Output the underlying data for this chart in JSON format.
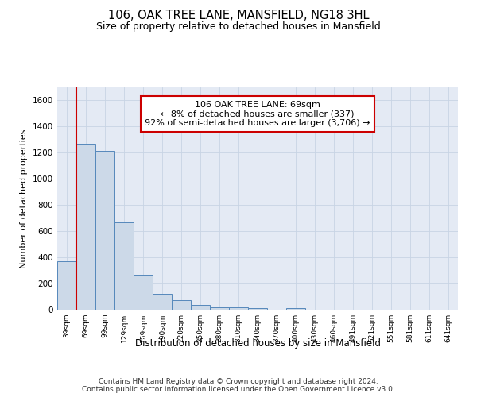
{
  "title": "106, OAK TREE LANE, MANSFIELD, NG18 3HL",
  "subtitle": "Size of property relative to detached houses in Mansfield",
  "xlabel": "Distribution of detached houses by size in Mansfield",
  "ylabel": "Number of detached properties",
  "footer_line1": "Contains HM Land Registry data © Crown copyright and database right 2024.",
  "footer_line2": "Contains public sector information licensed under the Open Government Licence v3.0.",
  "categories": [
    "39sqm",
    "69sqm",
    "99sqm",
    "129sqm",
    "159sqm",
    "190sqm",
    "220sqm",
    "250sqm",
    "280sqm",
    "310sqm",
    "340sqm",
    "370sqm",
    "400sqm",
    "430sqm",
    "460sqm",
    "491sqm",
    "521sqm",
    "551sqm",
    "581sqm",
    "611sqm",
    "641sqm"
  ],
  "bar_values": [
    370,
    1270,
    1215,
    670,
    265,
    120,
    70,
    38,
    20,
    18,
    15,
    0,
    15,
    0,
    0,
    0,
    0,
    0,
    0,
    0,
    0
  ],
  "bar_color": "#ccd9e8",
  "bar_edge_color": "#5588bb",
  "red_line_index": 1,
  "ylim": [
    0,
    1700
  ],
  "yticks": [
    0,
    200,
    400,
    600,
    800,
    1000,
    1200,
    1400,
    1600
  ],
  "annotation_line1": "106 OAK TREE LANE: 69sqm",
  "annotation_line2": "← 8% of detached houses are smaller (337)",
  "annotation_line3": "92% of semi-detached houses are larger (3,706) →",
  "annotation_box_facecolor": "#ffffff",
  "annotation_box_edgecolor": "#cc0000",
  "grid_color": "#c8d4e4",
  "background_color": "#e4eaf4"
}
